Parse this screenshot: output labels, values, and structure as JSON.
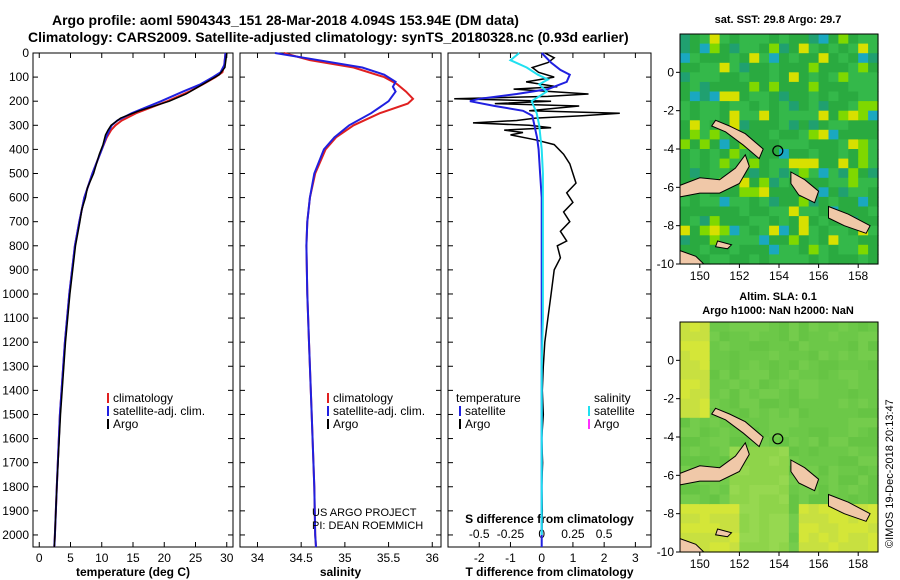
{
  "header": {
    "title_line1": "Argo profile: aoml 5904343_151 28-Mar-2018 4.094S 153.94E (DM data)",
    "title_line2": "Climatology: CARS2009. Satellite-adjusted climatology: synTS_20180328.nc (0.93d earlier)"
  },
  "colors": {
    "climatology": "#e02020",
    "satellite": "#2020e0",
    "argo": "#000000",
    "salinity_sat": "#20e0f0",
    "salinity_argo": "#ff30ff"
  },
  "depth_axis": {
    "ticks": [
      "0",
      "100",
      "200",
      "300",
      "400",
      "500",
      "600",
      "700",
      "800",
      "900",
      "1000",
      "1100",
      "1200",
      "1300",
      "1400",
      "1500",
      "1600",
      "1700",
      "1800",
      "1900",
      "2000"
    ]
  },
  "chart_data": [
    {
      "type": "line",
      "name": "temperature-profile",
      "xlabel": "temperature (deg C)",
      "xlim": [
        -1,
        31
      ],
      "ylim": [
        2050,
        0
      ],
      "xticks": [
        "0",
        "5",
        "10",
        "15",
        "20",
        "25",
        "30"
      ],
      "legend": [
        "climatology",
        "satellite-adj. clim.",
        "Argo"
      ],
      "legend_placement": "center-left",
      "series": [
        {
          "name": "climatology",
          "depth": [
            0,
            50,
            80,
            100,
            130,
            160,
            200,
            250,
            280,
            300,
            320,
            350,
            400,
            500,
            600,
            700,
            800,
            1000,
            1200,
            1500,
            1800,
            2000,
            2050
          ],
          "values": [
            29.8,
            29.6,
            29.3,
            28.2,
            26.2,
            24.0,
            20.5,
            15.5,
            13.2,
            12.2,
            11.5,
            10.8,
            10.0,
            8.5,
            7.2,
            6.4,
            5.7,
            4.8,
            4.1,
            3.3,
            2.8,
            2.5,
            2.4
          ]
        },
        {
          "name": "satellite-adj. clim.",
          "depth": [
            0,
            50,
            80,
            100,
            130,
            160,
            200,
            250,
            280,
            300,
            320,
            350,
            400,
            500,
            600,
            700,
            800,
            1000,
            1200,
            1500,
            1800,
            2000,
            2050
          ],
          "values": [
            29.8,
            29.6,
            29.0,
            27.8,
            25.8,
            23.0,
            19.5,
            14.8,
            12.5,
            11.6,
            11.2,
            10.7,
            10.0,
            8.5,
            7.2,
            6.4,
            5.7,
            4.8,
            4.1,
            3.3,
            2.8,
            2.5,
            2.4
          ]
        },
        {
          "name": "Argo",
          "depth": [
            0,
            60,
            90,
            110,
            140,
            170,
            200,
            240,
            270,
            300,
            320,
            340,
            380,
            420,
            500,
            560,
            600,
            650,
            700,
            800,
            1000,
            1200,
            1500,
            1800,
            2000,
            2050
          ],
          "values": [
            30.0,
            29.7,
            28.8,
            27.5,
            25.5,
            23.5,
            20.8,
            16.0,
            13.0,
            11.5,
            11.0,
            10.6,
            10.2,
            9.6,
            8.7,
            7.7,
            7.4,
            6.8,
            6.5,
            5.8,
            4.9,
            4.2,
            3.4,
            2.8,
            2.5,
            2.4
          ]
        }
      ]
    },
    {
      "type": "line",
      "name": "salinity-profile",
      "xlabel": "salinity",
      "xlim": [
        33.8,
        36.1
      ],
      "ylim": [
        2050,
        0
      ],
      "xticks": [
        "34",
        "34.5",
        "35",
        "35.5",
        "36"
      ],
      "legend": [
        "climatology",
        "satellite-adj. clim.",
        "Argo"
      ],
      "legend_placement": "center-right",
      "annotation": [
        "US ARGO PROJECT",
        "PI: DEAN ROEMMICH"
      ],
      "series": [
        {
          "name": "climatology",
          "depth": [
            0,
            30,
            60,
            100,
            130,
            160,
            190,
            210,
            250,
            300,
            350,
            400,
            500,
            600,
            700,
            800,
            1000,
            1200,
            1500,
            1800,
            2000,
            2050
          ],
          "values": [
            34.3,
            34.6,
            35.1,
            35.45,
            35.6,
            35.7,
            35.78,
            35.72,
            35.4,
            35.1,
            34.9,
            34.78,
            34.66,
            34.6,
            34.57,
            34.56,
            34.57,
            34.59,
            34.62,
            34.65,
            34.66,
            34.67
          ]
        },
        {
          "name": "satellite-adj. clim.",
          "depth": [
            0,
            30,
            60,
            90,
            120,
            140,
            160,
            200,
            250,
            300,
            350,
            400,
            500,
            600,
            700,
            800,
            1000,
            1200,
            1500,
            1800,
            2000,
            2050
          ],
          "values": [
            34.2,
            34.7,
            35.2,
            35.45,
            35.58,
            35.55,
            35.58,
            35.5,
            35.3,
            35.05,
            34.88,
            34.76,
            34.65,
            34.6,
            34.57,
            34.56,
            34.57,
            34.59,
            34.62,
            34.65,
            34.66,
            34.67
          ]
        }
      ]
    },
    {
      "type": "line",
      "name": "difference-profile",
      "xlabel": "T difference from climatology",
      "xlabel_secondary": "S difference from climatology",
      "xlim": [
        -3,
        3.5
      ],
      "s_xlim": [
        -0.75,
        0.875
      ],
      "ylim": [
        2050,
        0
      ],
      "xticks": [
        "-2",
        "-1",
        "0",
        "1",
        "2",
        "3"
      ],
      "s_xticks": [
        "-0.5",
        "-0.25",
        "0",
        "0.25",
        "0.5"
      ],
      "legend_temperature": {
        "title": "temperature",
        "items": [
          "satellite",
          "Argo"
        ]
      },
      "legend_salinity": {
        "title": "salinity",
        "items": [
          "satellite",
          "Argo"
        ]
      },
      "series": [
        {
          "name": "temperature satellite",
          "depth": [
            0,
            40,
            70,
            90,
            120,
            150,
            170,
            190,
            200,
            220,
            240,
            260,
            290,
            320,
            350,
            400,
            500,
            600,
            700,
            800,
            1000,
            1200,
            1500,
            1800,
            2000,
            2050
          ],
          "values": [
            0,
            0.3,
            0.6,
            0.9,
            0.8,
            0.2,
            -0.8,
            -2.0,
            -2.3,
            -1.5,
            -0.6,
            -0.3,
            -0.25,
            -0.2,
            -0.15,
            -0.1,
            -0.05,
            0,
            0,
            0,
            0,
            0,
            0,
            0,
            0,
            0
          ]
        },
        {
          "name": "temperature Argo",
          "depth": [
            0,
            20,
            40,
            60,
            80,
            100,
            120,
            140,
            150,
            170,
            180,
            190,
            200,
            210,
            220,
            240,
            250,
            260,
            270,
            280,
            290,
            300,
            310,
            320,
            330,
            340,
            360,
            380,
            420,
            460,
            500,
            540,
            580,
            620,
            660,
            700,
            740,
            780,
            800,
            850,
            900,
            1000,
            1100,
            1200,
            1300,
            1400,
            1500,
            1600,
            1700,
            1800,
            1900,
            2000
          ],
          "values": [
            0.1,
            0.4,
            0.2,
            -0.3,
            -0.1,
            0.4,
            -0.5,
            0.5,
            -0.9,
            1.5,
            0.2,
            -2.8,
            0.3,
            -1.5,
            1.2,
            -0.4,
            2.5,
            1.3,
            -0.2,
            -0.8,
            -2.2,
            -0.4,
            0.3,
            -1.2,
            -0.6,
            -1.0,
            -0.2,
            0.4,
            0.7,
            0.9,
            1.0,
            1.1,
            0.8,
            1.0,
            0.7,
            0.9,
            0.6,
            0.8,
            0.5,
            0.6,
            0.4,
            0.3,
            0.2,
            0.1,
            0.05,
            0.02,
            0.05,
            0,
            0.03,
            0,
            0.02,
            0
          ]
        }
      ],
      "s_series": [
        {
          "name": "salinity satellite",
          "depth": [
            0,
            30,
            60,
            90,
            110,
            130,
            160,
            200,
            250,
            300,
            400,
            500,
            700,
            900,
            1100,
            1300,
            1500,
            1700,
            1900,
            2000
          ],
          "values": [
            -0.18,
            -0.25,
            -0.12,
            -0.03,
            0.05,
            -0.02,
            0.04,
            -0.08,
            -0.04,
            -0.02,
            0.0,
            0.01,
            0.01,
            0.01,
            0.01,
            0.0,
            0.0,
            0.0,
            0.0,
            0.0
          ]
        }
      ]
    }
  ],
  "maps": [
    {
      "name": "sst-map",
      "title_lines": [
        "sat. SST: 29.8 Argo: 29.7"
      ],
      "xlim": [
        149,
        159
      ],
      "ylim": [
        -10,
        2
      ],
      "xticks": [
        "150",
        "152",
        "154",
        "156",
        "158"
      ],
      "yticks": [
        "0",
        "-2",
        "-4",
        "-6",
        "-8",
        "-10"
      ],
      "float_position": [
        153.94,
        -4.094
      ]
    },
    {
      "name": "sla-map",
      "title_lines": [
        "Altim. SLA: 0.1",
        "Argo h1000: NaN h2000: NaN"
      ],
      "xlim": [
        149,
        159
      ],
      "ylim": [
        -10,
        2
      ],
      "xticks": [
        "150",
        "152",
        "154",
        "156",
        "158"
      ],
      "yticks": [
        "0",
        "-2",
        "-4",
        "-6",
        "-8",
        "-10"
      ],
      "float_position": [
        153.94,
        -4.094
      ]
    }
  ],
  "stamp": "©IMOS 19-Dec-2018 20:13:47"
}
